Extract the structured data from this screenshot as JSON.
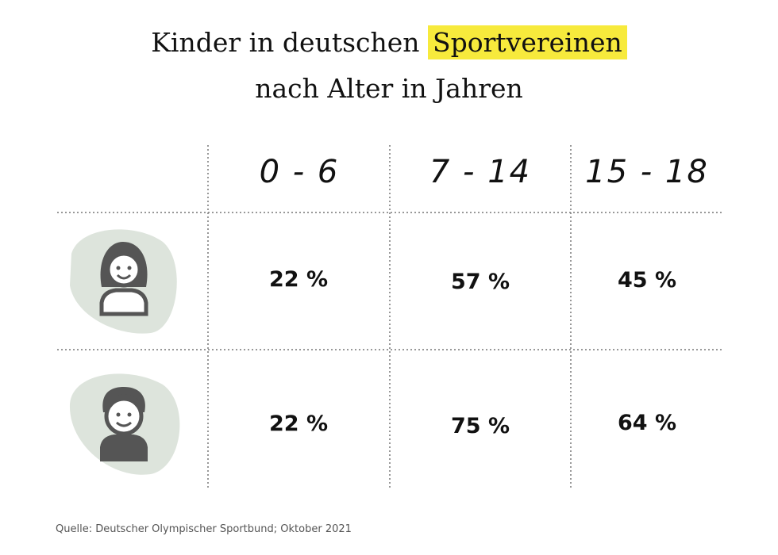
{
  "header": {
    "title_start": "Kinder in deutschen",
    "title_highlight": "Sportvereinen",
    "title_line2": "nach Alter in Jahren"
  },
  "table": {
    "columns": [
      "0 - 6",
      "7 - 14",
      "15 - 18"
    ],
    "rows": [
      [
        "22 %",
        "57 %",
        "45 %"
      ],
      [
        "22 %",
        "75 %",
        "64 %"
      ]
    ]
  },
  "source": "Quelle: Deutscher Olympischer Sportbund; Oktober 2021"
}
